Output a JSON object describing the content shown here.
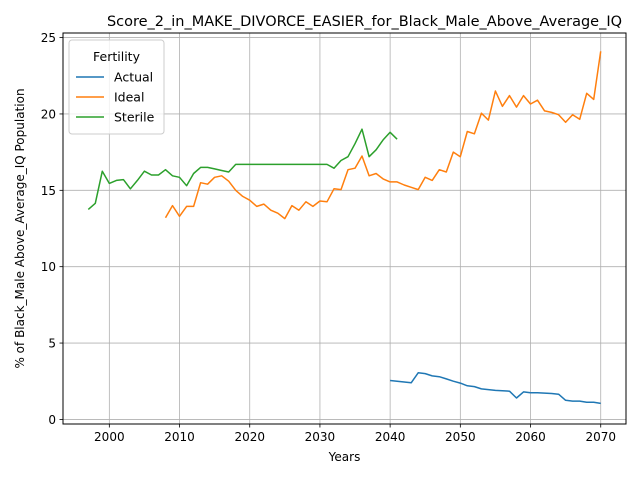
{
  "chart_data": {
    "type": "line",
    "title": "Score_2_in_MAKE_DIVORCE_EASIER_for_Black_Male_Above_Average_IQ",
    "xlabel": "Years",
    "ylabel": "% of Black_Male Above_Average_IQ Population",
    "xlim": [
      1993.4,
      2073.6
    ],
    "ylim": [
      -0.3,
      25.3
    ],
    "xticks": [
      2000,
      2010,
      2020,
      2030,
      2040,
      2050,
      2060,
      2070
    ],
    "yticks": [
      0,
      5,
      10,
      15,
      20,
      25
    ],
    "grid": true,
    "legend": {
      "title": "Fertility",
      "position": "top-left"
    },
    "series": [
      {
        "name": "Actual",
        "color": "#1f77b4",
        "x": [
          2040,
          2041,
          2042,
          2043,
          2044,
          2045,
          2046,
          2047,
          2048,
          2049,
          2050,
          2051,
          2052,
          2053,
          2054,
          2055,
          2056,
          2057,
          2058,
          2059,
          2060,
          2061,
          2062,
          2063,
          2064,
          2065,
          2066,
          2067,
          2068,
          2069,
          2070
        ],
        "y": [
          2.55,
          2.5,
          2.45,
          2.4,
          3.05,
          3.0,
          2.85,
          2.8,
          2.65,
          2.5,
          2.38,
          2.2,
          2.15,
          2.0,
          1.95,
          1.9,
          1.88,
          1.85,
          1.4,
          1.8,
          1.75,
          1.75,
          1.72,
          1.7,
          1.65,
          1.25,
          1.2,
          1.2,
          1.12,
          1.12,
          1.05
        ]
      },
      {
        "name": "Ideal",
        "color": "#ff7f0e",
        "x": [
          2008,
          2009,
          2010,
          2011,
          2012,
          2013,
          2014,
          2015,
          2016,
          2017,
          2018,
          2019,
          2020,
          2021,
          2022,
          2023,
          2024,
          2025,
          2026,
          2027,
          2028,
          2029,
          2030,
          2031,
          2032,
          2033,
          2034,
          2035,
          2036,
          2037,
          2038,
          2039,
          2040,
          2041,
          2042,
          2043,
          2044,
          2045,
          2046,
          2047,
          2048,
          2049,
          2050,
          2051,
          2052,
          2053,
          2054,
          2055,
          2056,
          2057,
          2058,
          2059,
          2060,
          2061,
          2062,
          2063,
          2064,
          2065,
          2066,
          2067,
          2068,
          2069,
          2070
        ],
        "y": [
          13.2,
          14.0,
          13.3,
          13.95,
          13.95,
          15.5,
          15.4,
          15.85,
          15.95,
          15.6,
          15.0,
          14.6,
          14.35,
          13.95,
          14.1,
          13.7,
          13.5,
          13.15,
          14.0,
          13.7,
          14.25,
          13.95,
          14.3,
          14.25,
          15.1,
          15.05,
          16.35,
          16.45,
          17.25,
          15.95,
          16.1,
          15.75,
          15.55,
          15.55,
          15.35,
          15.2,
          15.05,
          15.85,
          15.65,
          16.35,
          16.2,
          17.5,
          17.2,
          18.85,
          18.7,
          20.05,
          19.6,
          21.5,
          20.5,
          21.2,
          20.45,
          21.2,
          20.65,
          20.9,
          20.2,
          20.1,
          19.95,
          19.45,
          19.95,
          19.65,
          21.35,
          20.95,
          24.1
        ]
      },
      {
        "name": "Sterile",
        "color": "#2ca02c",
        "x": [
          1997,
          1998,
          1999,
          2000,
          2001,
          2002,
          2003,
          2004,
          2005,
          2006,
          2007,
          2008,
          2009,
          2010,
          2011,
          2012,
          2013,
          2014,
          2015,
          2016,
          2017,
          2018,
          2019,
          2020,
          2021,
          2022,
          2023,
          2024,
          2025,
          2026,
          2027,
          2028,
          2029,
          2030,
          2031,
          2032,
          2033,
          2034,
          2035,
          2036,
          2037,
          2038,
          2039,
          2040,
          2041
        ],
        "y": [
          13.75,
          14.15,
          16.25,
          15.45,
          15.65,
          15.7,
          15.1,
          15.65,
          16.25,
          16.0,
          16.0,
          16.35,
          15.95,
          15.85,
          15.3,
          16.1,
          16.5,
          16.5,
          16.4,
          16.3,
          16.2,
          16.7,
          16.7,
          16.7,
          16.7,
          16.7,
          16.7,
          16.7,
          16.7,
          16.7,
          16.7,
          16.7,
          16.7,
          16.7,
          16.7,
          16.45,
          16.95,
          17.2,
          18.05,
          19.0,
          17.2,
          17.65,
          18.3,
          18.8,
          18.35
        ]
      }
    ]
  }
}
